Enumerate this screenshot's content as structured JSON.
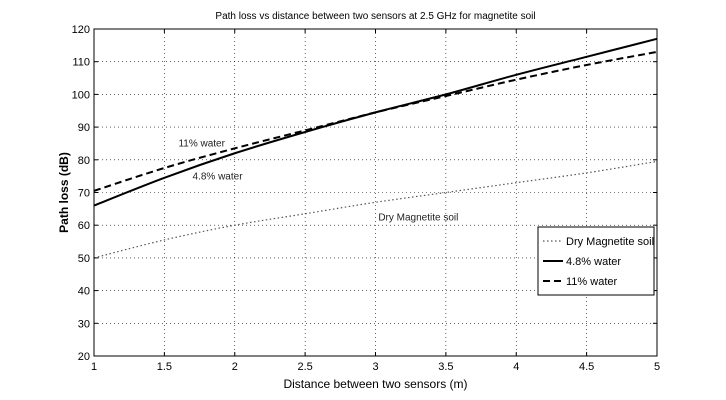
{
  "chart_data": {
    "type": "line",
    "title": "Path loss vs distance between two sensors at 2.5 GHz for magnetite soil",
    "xlabel": "Distance between two sensors (m)",
    "ylabel": "Path loss (dB)",
    "xlim": [
      1,
      5
    ],
    "ylim": [
      20,
      120
    ],
    "xticks": [
      1,
      1.5,
      2,
      2.5,
      3,
      3.5,
      4,
      4.5,
      5
    ],
    "xtick_labels": [
      "1",
      "1.5",
      "2",
      "2.5",
      "3",
      "3.5",
      "4",
      "4.5",
      "5"
    ],
    "yticks": [
      20,
      30,
      40,
      50,
      60,
      70,
      80,
      90,
      100,
      110,
      120
    ],
    "ytick_labels": [
      "20",
      "30",
      "40",
      "50",
      "60",
      "70",
      "80",
      "90",
      "100",
      "110",
      "120"
    ],
    "grid": true,
    "legend_position": "lower-right",
    "x": [
      1,
      1.5,
      2,
      2.5,
      3,
      3.5,
      4,
      4.5,
      5
    ],
    "series": [
      {
        "name": "Dry Magnetite soil",
        "style": "dotted",
        "color": "#555555",
        "values": [
          50,
          55.5,
          60,
          63.5,
          67,
          70,
          73,
          76,
          79.5
        ]
      },
      {
        "name": "4.8% water",
        "style": "solid",
        "color": "#000000",
        "values": [
          66,
          74.5,
          82,
          88.5,
          94.5,
          100,
          106,
          111.5,
          117
        ]
      },
      {
        "name": "11% water",
        "style": "dashed",
        "color": "#000000",
        "values": [
          70.5,
          77.5,
          83.5,
          89,
          94.5,
          99.5,
          104.5,
          109,
          113
        ]
      }
    ],
    "annotations": [
      {
        "text": "11% water",
        "x": 1.6,
        "y": 84
      },
      {
        "text": "4.8% water",
        "x": 1.7,
        "y": 74
      },
      {
        "text": "Dry Magnetite soil",
        "x": 3.02,
        "y": 61.5
      }
    ]
  }
}
